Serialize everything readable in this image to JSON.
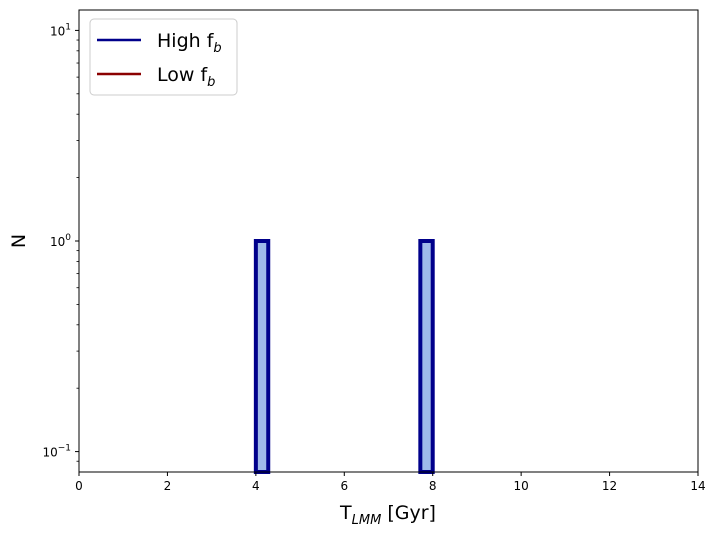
{
  "chart_data": {
    "type": "bar",
    "title": "",
    "xlabel": {
      "main": "T",
      "sub": "LMM",
      "unit": " [Gyr]"
    },
    "ylabel": "N",
    "xlim": [
      0,
      14
    ],
    "ylim": [
      0.08,
      12.5
    ],
    "yscale": "log",
    "grid": false,
    "legend_position": "top-left",
    "x_ticks": [
      0,
      2,
      4,
      6,
      8,
      10,
      12,
      14
    ],
    "x_tick_labels": [
      "0",
      "2",
      "4",
      "6",
      "8",
      "10",
      "12",
      "14"
    ],
    "y_ticks": [
      {
        "value": 10,
        "base": "10",
        "exp": "1"
      },
      {
        "value": 1,
        "base": "10",
        "exp": "0"
      },
      {
        "value": 0.1,
        "base": "10",
        "exp": "−1"
      }
    ],
    "y_minor_ticks": [
      0.09,
      0.2,
      0.3,
      0.4,
      0.5,
      0.6,
      0.7,
      0.8,
      0.9,
      2,
      3,
      4,
      5,
      6,
      7,
      8,
      9
    ],
    "series": [
      {
        "name": "High f",
        "name_sub": "b",
        "color": "#00008b",
        "fill": "#9fb9ea",
        "bins": [
          {
            "x0": 4.0,
            "x1": 4.28,
            "value": 1
          },
          {
            "x0": 7.72,
            "x1": 8.0,
            "value": 1
          }
        ]
      },
      {
        "name": "Low f",
        "name_sub": "b",
        "color": "#8b0000",
        "fill": "#e8a0a0",
        "bins": []
      }
    ]
  }
}
